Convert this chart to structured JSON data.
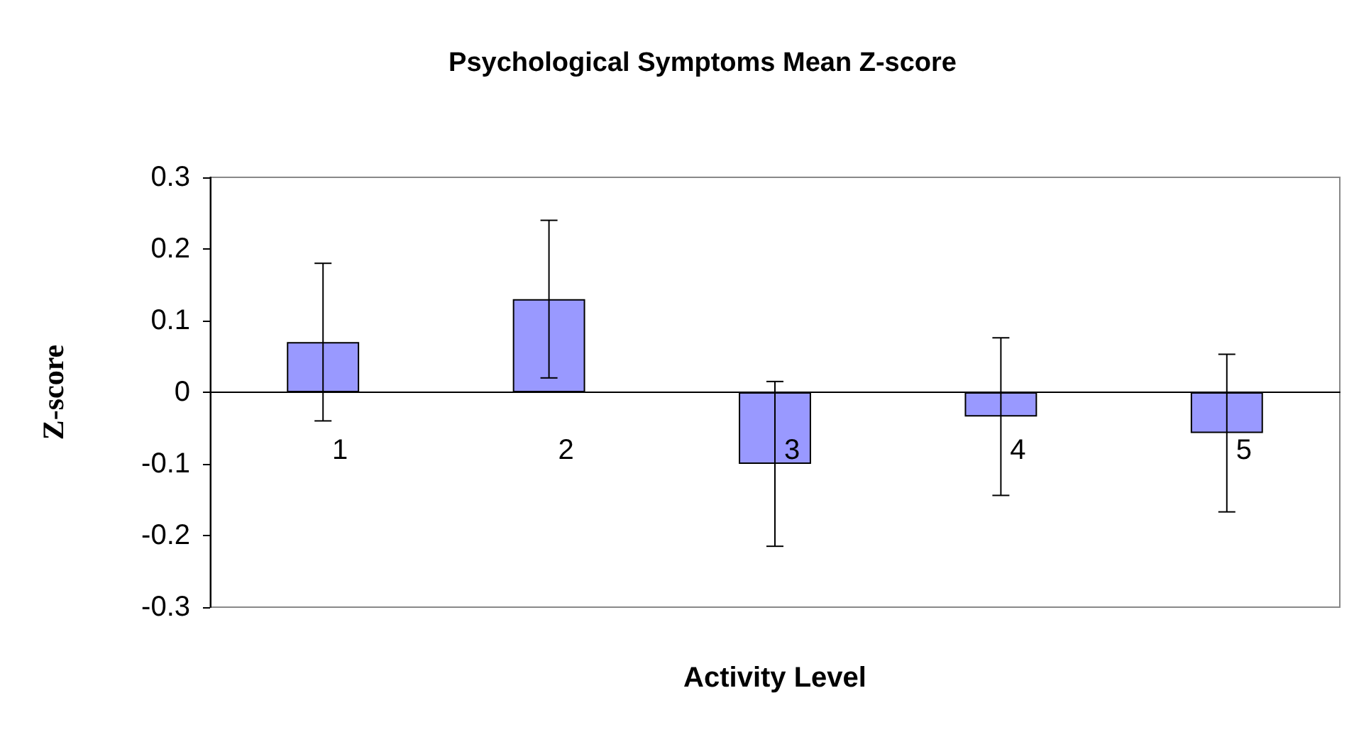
{
  "chart_data": {
    "type": "bar",
    "title": "Psychological Symptoms Mean Z-score",
    "xlabel": "Activity Level",
    "ylabel": "Z-score",
    "categories": [
      "1",
      "2",
      "3",
      "4",
      "5"
    ],
    "values": [
      0.07,
      0.13,
      -0.1,
      -0.034,
      -0.057
    ],
    "errors": [
      0.11,
      0.11,
      0.115,
      0.11,
      0.11
    ],
    "color": "#9999ff",
    "ylim": [
      -0.3,
      0.3
    ],
    "yticks": [
      -0.3,
      -0.2,
      -0.1,
      0,
      0.1,
      0.2,
      0.3
    ]
  }
}
